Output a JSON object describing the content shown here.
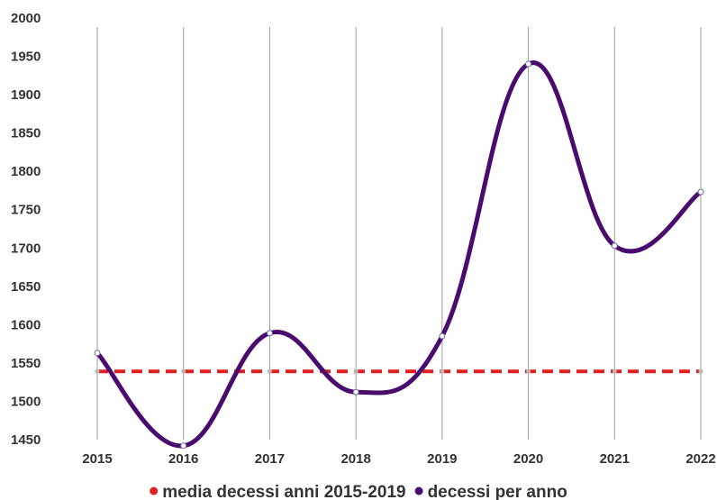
{
  "chart_data": {
    "type": "line",
    "title": "",
    "xlabel": "",
    "ylabel": "",
    "x": [
      "2015",
      "2016",
      "2017",
      "2018",
      "2019",
      "2020",
      "2021",
      "2022"
    ],
    "ylim": [
      1450,
      2000
    ],
    "yticks": [
      "1450",
      "1500",
      "1550",
      "1600",
      "1650",
      "1700",
      "1750",
      "1800",
      "1850",
      "1900",
      "1950",
      "2000"
    ],
    "grid": "vertical",
    "legend_position": "bottom",
    "series": [
      {
        "name": "media decessi anni 2015-2019",
        "color": "#e02020",
        "style": "dashed",
        "values": [
          1539,
          1539,
          1539,
          1539,
          1539,
          1539,
          1539,
          1539
        ]
      },
      {
        "name": "decessi per anno",
        "color": "#4a0a6e",
        "style": "smooth",
        "values": [
          1563,
          1442,
          1589,
          1512,
          1585,
          1940,
          1703,
          1773
        ]
      }
    ]
  }
}
